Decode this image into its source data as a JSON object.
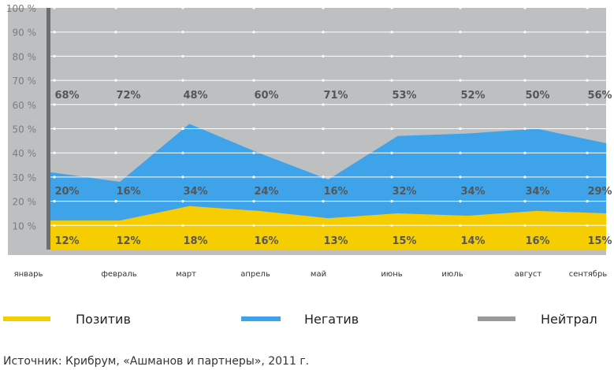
{
  "chart_data": {
    "type": "area",
    "stacked": true,
    "ylim": [
      0,
      100
    ],
    "yticks": [
      "100 %",
      "90 %",
      "80 %",
      "70 %",
      "60 %",
      "50 %",
      "40 %",
      "30 %",
      "20 %",
      "10 %"
    ],
    "categories": [
      "январь",
      "февраль",
      "март",
      "апрель",
      "май",
      "июнь",
      "июль",
      "август",
      "сентябрь"
    ],
    "series": [
      {
        "name": "Позитив",
        "color": "#f5cd00",
        "values": [
          12,
          12,
          18,
          16,
          13,
          15,
          14,
          16,
          15
        ],
        "labels": [
          "12%",
          "12%",
          "18%",
          "16%",
          "13%",
          "15%",
          "14%",
          "16%",
          "15%"
        ]
      },
      {
        "name": "Негатив",
        "color": "#3fa3ea",
        "values": [
          20,
          16,
          34,
          24,
          16,
          32,
          34,
          34,
          29
        ],
        "labels": [
          "20%",
          "16%",
          "34%",
          "24%",
          "16%",
          "32%",
          "34%",
          "34%",
          "29%"
        ]
      },
      {
        "name": "Нейтрал",
        "color": "#bebfc1",
        "values": [
          68,
          72,
          48,
          60,
          71,
          53,
          52,
          50,
          56
        ],
        "labels": [
          "68%",
          "72%",
          "48%",
          "60%",
          "71%",
          "53%",
          "52%",
          "50%",
          "56%"
        ]
      }
    ],
    "grid": true,
    "legend_position": "bottom"
  },
  "legend": [
    {
      "label": "Позитив",
      "color": "#f5cd00"
    },
    {
      "label": "Негатив",
      "color": "#3fa3ea"
    },
    {
      "label": "Нейтрал",
      "color": "#9a9a9a"
    }
  ],
  "source": "Источник: Крибрум, «Ашманов и партнеры», 2011 г."
}
